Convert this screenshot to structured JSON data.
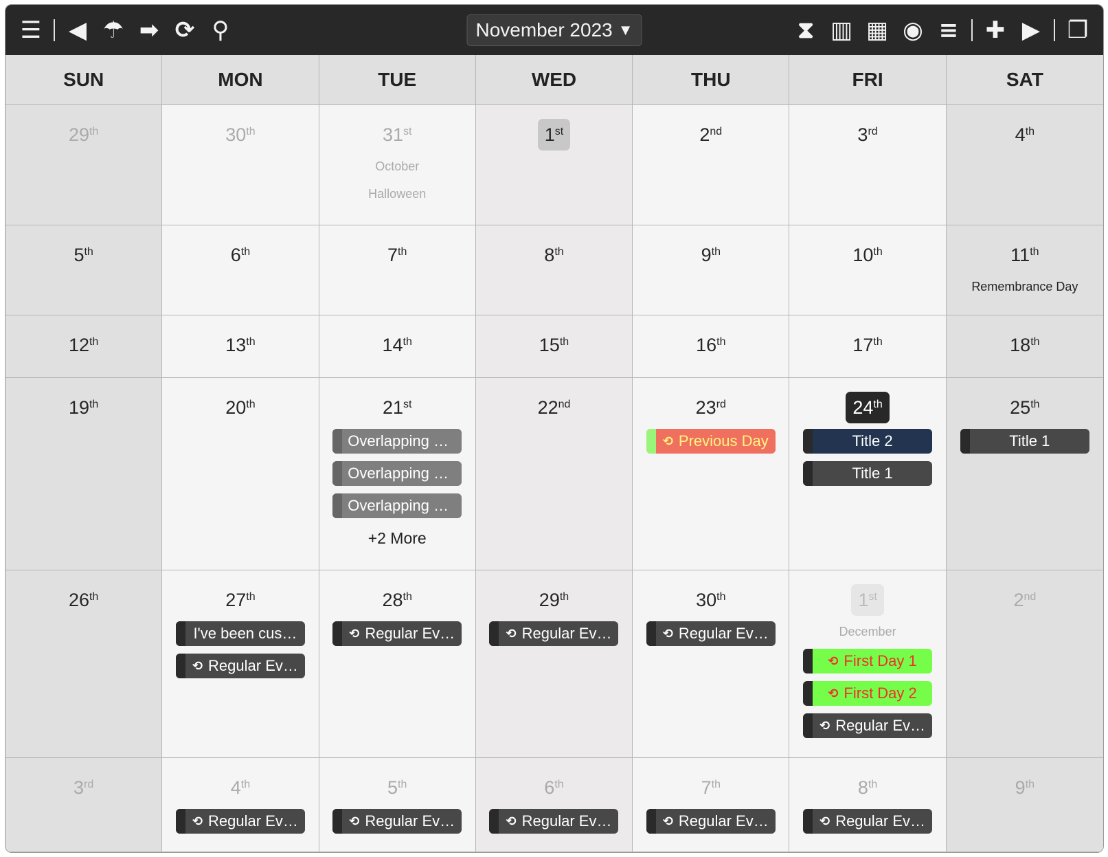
{
  "toolbar": {
    "left_icons": [
      "menu-icon",
      "back-icon",
      "today-icon",
      "forward-icon",
      "refresh-icon",
      "search-icon"
    ],
    "right_icons": [
      "hourglass-icon",
      "columns-icon",
      "grid-icon",
      "eye-icon",
      "list-icon",
      "add-icon",
      "play-icon",
      "fullscreen-icon"
    ],
    "month_label": "November 2023",
    "caret": "▼"
  },
  "colors": {
    "toolbar": "#282828",
    "weekend": "#e0e0e0",
    "weekday": "#f5f5f5",
    "event_dark": "#484848",
    "event_navy": "#22344f",
    "event_previous_day": "#f07060",
    "event_first_day": "#76fd4a"
  },
  "weekdays": [
    "SUN",
    "MON",
    "TUE",
    "WED",
    "THU",
    "FRI",
    "SAT"
  ],
  "weeks": [
    {
      "days": [
        {
          "num": "29",
          "suffix": "th",
          "state": "muted"
        },
        {
          "num": "30",
          "suffix": "th",
          "state": "muted"
        },
        {
          "num": "31",
          "suffix": "st",
          "state": "muted",
          "subs": [
            "October",
            "Halloween"
          ],
          "subs_muted": true
        },
        {
          "num": "1",
          "suffix": "st",
          "state": "sel"
        },
        {
          "num": "2",
          "suffix": "nd"
        },
        {
          "num": "3",
          "suffix": "rd"
        },
        {
          "num": "4",
          "suffix": "th"
        }
      ]
    },
    {
      "days": [
        {
          "num": "5",
          "suffix": "th"
        },
        {
          "num": "6",
          "suffix": "th"
        },
        {
          "num": "7",
          "suffix": "th"
        },
        {
          "num": "8",
          "suffix": "th"
        },
        {
          "num": "9",
          "suffix": "th"
        },
        {
          "num": "10",
          "suffix": "th"
        },
        {
          "num": "11",
          "suffix": "th",
          "subs": [
            "Remembrance Day"
          ]
        }
      ]
    },
    {
      "days": [
        {
          "num": "12",
          "suffix": "th"
        },
        {
          "num": "13",
          "suffix": "th"
        },
        {
          "num": "14",
          "suffix": "th"
        },
        {
          "num": "15",
          "suffix": "th"
        },
        {
          "num": "16",
          "suffix": "th"
        },
        {
          "num": "17",
          "suffix": "th"
        },
        {
          "num": "18",
          "suffix": "th"
        }
      ]
    },
    {
      "days": [
        {
          "num": "19",
          "suffix": "th"
        },
        {
          "num": "20",
          "suffix": "th"
        },
        {
          "num": "21",
          "suffix": "st",
          "events": [
            {
              "label": "Overlapping …",
              "style": "overlap"
            },
            {
              "label": "Overlapping …",
              "style": "overlap"
            },
            {
              "label": "Overlapping …",
              "style": "overlap"
            }
          ],
          "more": "+2 More"
        },
        {
          "num": "22",
          "suffix": "nd"
        },
        {
          "num": "23",
          "suffix": "rd",
          "events": [
            {
              "label": "Previous Day",
              "style": "prev",
              "icon": "repeat-icon"
            }
          ]
        },
        {
          "num": "24",
          "suffix": "th",
          "state": "today",
          "events": [
            {
              "label": "Title 2",
              "style": "navy"
            },
            {
              "label": "Title 1",
              "style": "dark"
            }
          ]
        },
        {
          "num": "25",
          "suffix": "th",
          "events": [
            {
              "label": "Title 1",
              "style": "dark"
            }
          ]
        }
      ]
    },
    {
      "days": [
        {
          "num": "26",
          "suffix": "th"
        },
        {
          "num": "27",
          "suffix": "th",
          "events": [
            {
              "label": "I've been cus…",
              "style": "dark"
            },
            {
              "label": "Regular Ev…",
              "style": "dark",
              "icon": "repeat-icon"
            }
          ]
        },
        {
          "num": "28",
          "suffix": "th",
          "events": [
            {
              "label": "Regular Ev…",
              "style": "dark",
              "icon": "repeat-icon"
            }
          ]
        },
        {
          "num": "29",
          "suffix": "th",
          "events": [
            {
              "label": "Regular Ev…",
              "style": "dark",
              "icon": "repeat-icon"
            }
          ]
        },
        {
          "num": "30",
          "suffix": "th",
          "events": [
            {
              "label": "Regular Ev…",
              "style": "dark",
              "icon": "repeat-icon"
            }
          ]
        },
        {
          "num": "1",
          "suffix": "st",
          "state": "selmuted",
          "subs": [
            "December"
          ],
          "subs_muted": true,
          "events": [
            {
              "label": "First Day 1",
              "style": "green",
              "icon": "repeat-icon"
            },
            {
              "label": "First Day 2",
              "style": "green",
              "icon": "repeat-icon"
            },
            {
              "label": "Regular Ev…",
              "style": "dark",
              "icon": "repeat-icon"
            }
          ]
        },
        {
          "num": "2",
          "suffix": "nd",
          "state": "muted"
        }
      ]
    },
    {
      "days": [
        {
          "num": "3",
          "suffix": "rd",
          "state": "muted"
        },
        {
          "num": "4",
          "suffix": "th",
          "state": "muted",
          "events": [
            {
              "label": "Regular Ev…",
              "style": "dark",
              "icon": "repeat-icon"
            }
          ]
        },
        {
          "num": "5",
          "suffix": "th",
          "state": "muted",
          "events": [
            {
              "label": "Regular Ev…",
              "style": "dark",
              "icon": "repeat-icon"
            }
          ]
        },
        {
          "num": "6",
          "suffix": "th",
          "state": "muted",
          "events": [
            {
              "label": "Regular Ev…",
              "style": "dark",
              "icon": "repeat-icon"
            }
          ]
        },
        {
          "num": "7",
          "suffix": "th",
          "state": "muted",
          "events": [
            {
              "label": "Regular Ev…",
              "style": "dark",
              "icon": "repeat-icon"
            }
          ]
        },
        {
          "num": "8",
          "suffix": "th",
          "state": "muted",
          "events": [
            {
              "label": "Regular Ev…",
              "style": "dark",
              "icon": "repeat-icon"
            }
          ]
        },
        {
          "num": "9",
          "suffix": "th",
          "state": "muted"
        }
      ]
    }
  ]
}
